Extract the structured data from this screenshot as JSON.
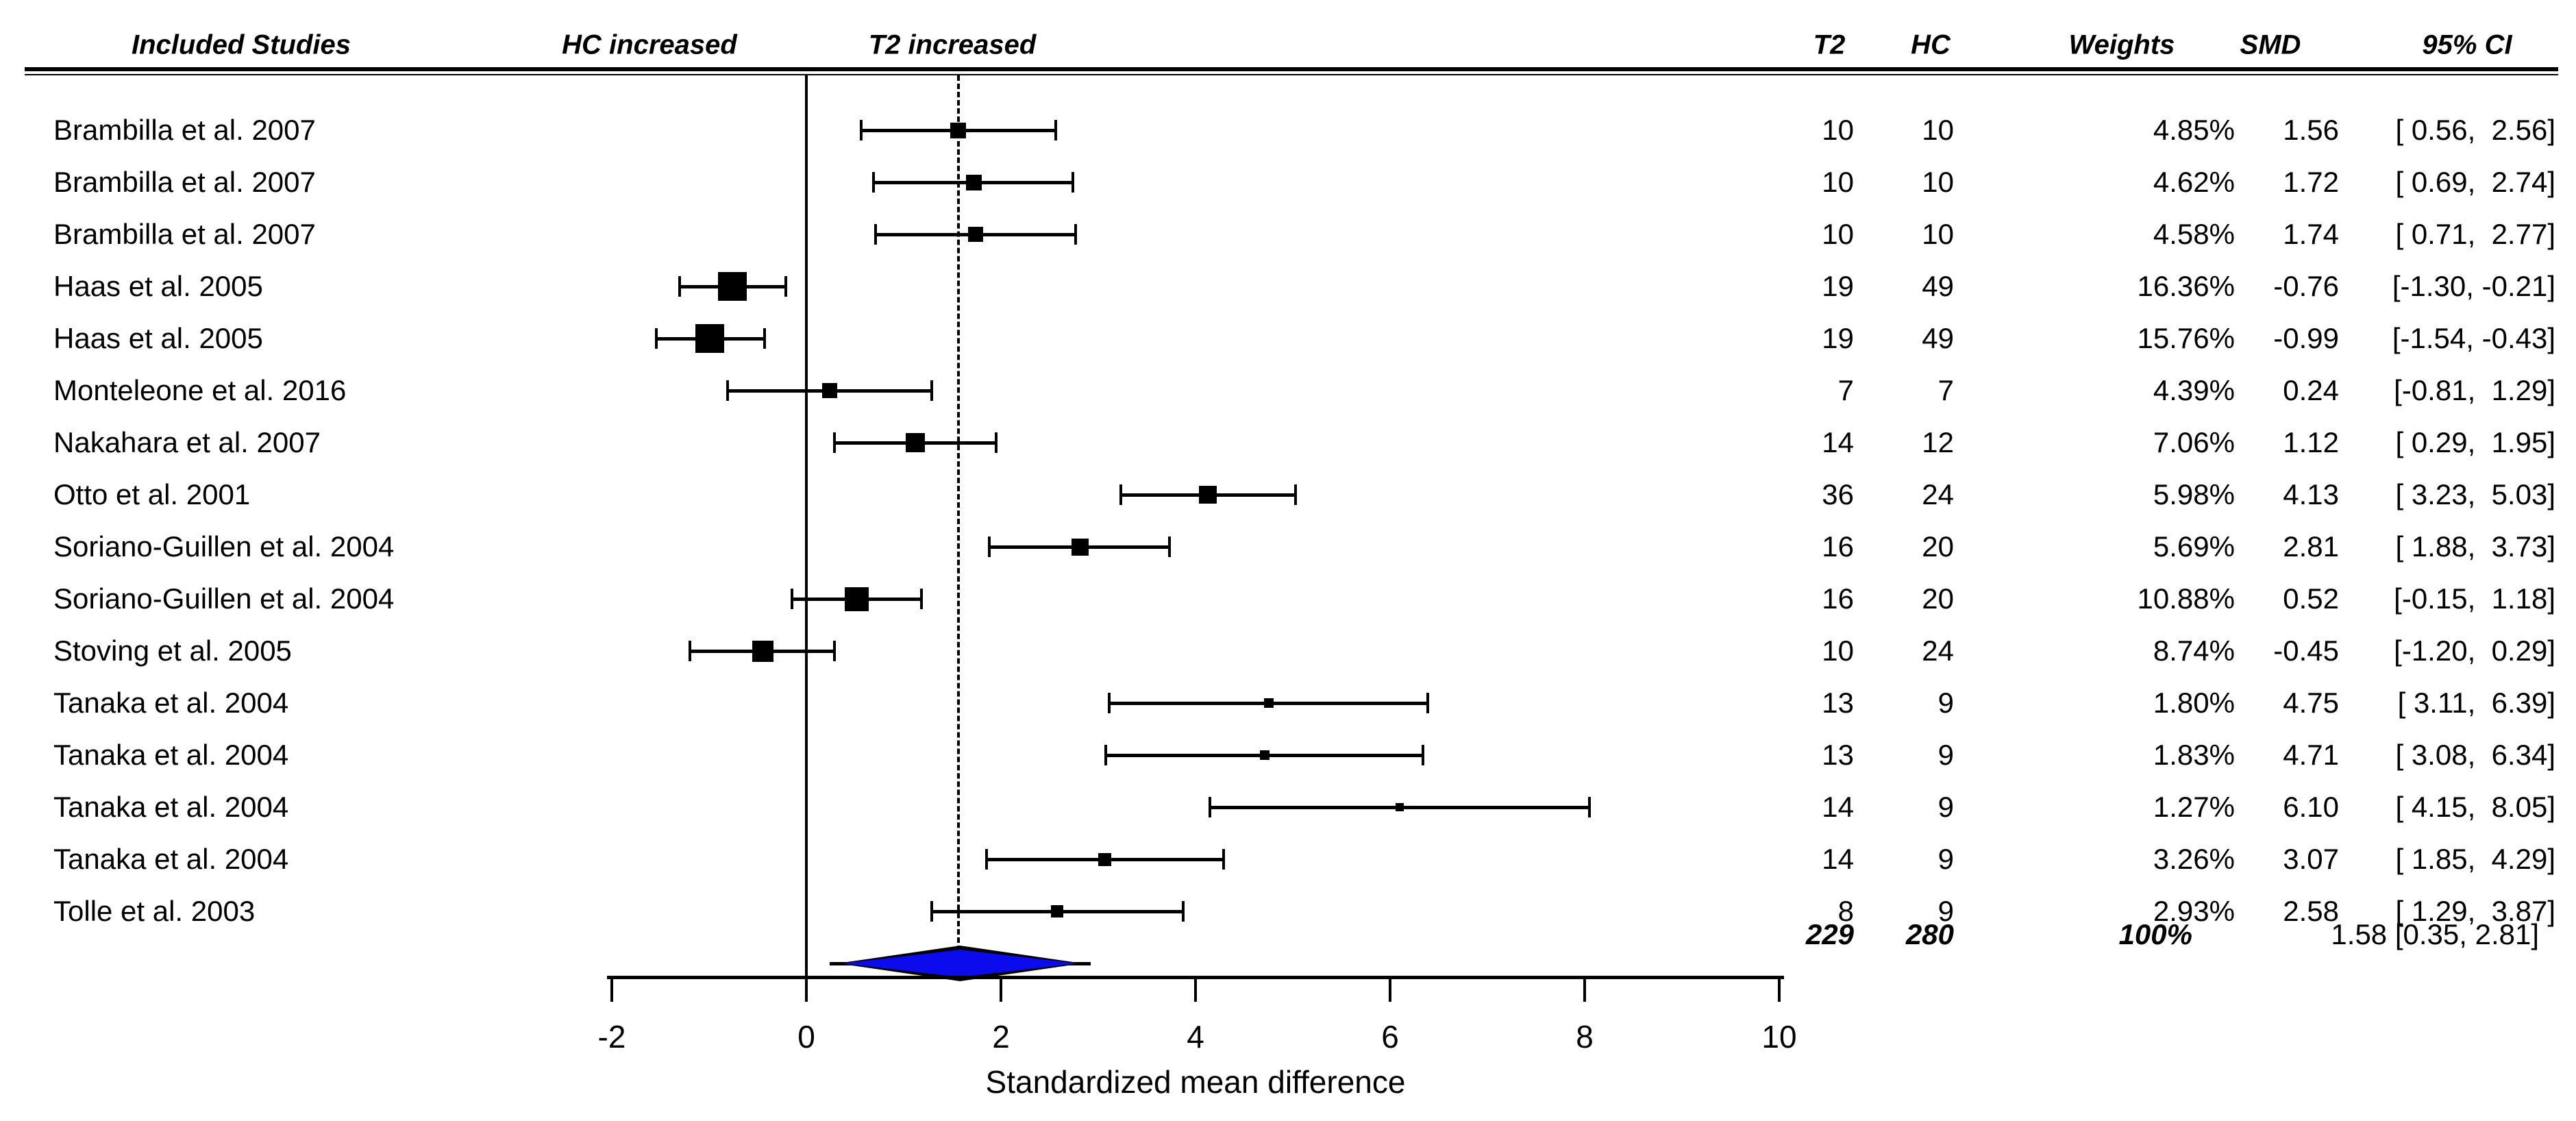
{
  "header": {
    "included_studies": "Included Studies",
    "hc_increased": "HC increased",
    "t2_increased": "T2 increased",
    "t2": "T2",
    "hc": "HC",
    "weights": "Weights",
    "smd": "SMD",
    "ci": "95% CI"
  },
  "colors": {
    "diamond_fill": "#0b0bee",
    "line": "#000000",
    "background": "#ffffff"
  },
  "chart_data": {
    "type": "scatter",
    "variant": "forest-plot",
    "xlabel": "Standardized mean difference",
    "x_axis": {
      "min": -2,
      "max": 10,
      "ticks": [
        -2,
        0,
        2,
        4,
        6,
        8,
        10
      ],
      "tick_labels": [
        "-2",
        "0",
        "2",
        "4",
        "6",
        "8",
        "10"
      ]
    },
    "reference_line_value": 0,
    "summary_dashed_line_value": 1.58,
    "grid": false,
    "studies": [
      {
        "name": "Brambilla et al. 2007",
        "t2": "10",
        "hc": "10",
        "weight": 4.85,
        "weight_label": "4.85%",
        "smd": 1.56,
        "smd_label": "1.56",
        "ci_low": 0.56,
        "ci_high": 2.56,
        "ci_label": "[ 0.56,  2.56]"
      },
      {
        "name": "Brambilla et al. 2007",
        "t2": "10",
        "hc": "10",
        "weight": 4.62,
        "weight_label": "4.62%",
        "smd": 1.72,
        "smd_label": "1.72",
        "ci_low": 0.69,
        "ci_high": 2.74,
        "ci_label": "[ 0.69,  2.74]"
      },
      {
        "name": "Brambilla et al. 2007",
        "t2": "10",
        "hc": "10",
        "weight": 4.58,
        "weight_label": "4.58%",
        "smd": 1.74,
        "smd_label": "1.74",
        "ci_low": 0.71,
        "ci_high": 2.77,
        "ci_label": "[ 0.71,  2.77]"
      },
      {
        "name": "Haas et al. 2005",
        "t2": "19",
        "hc": "49",
        "weight": 16.36,
        "weight_label": "16.36%",
        "smd": -0.76,
        "smd_label": "-0.76",
        "ci_low": -1.3,
        "ci_high": -0.21,
        "ci_label": "[-1.30, -0.21]"
      },
      {
        "name": "Haas et al. 2005",
        "t2": "19",
        "hc": "49",
        "weight": 15.76,
        "weight_label": "15.76%",
        "smd": -0.99,
        "smd_label": "-0.99",
        "ci_low": -1.54,
        "ci_high": -0.43,
        "ci_label": "[-1.54, -0.43]"
      },
      {
        "name": "Monteleone et al. 2016",
        "t2": "7",
        "hc": "7",
        "weight": 4.39,
        "weight_label": "4.39%",
        "smd": 0.24,
        "smd_label": "0.24",
        "ci_low": -0.81,
        "ci_high": 1.29,
        "ci_label": "[-0.81,  1.29]"
      },
      {
        "name": "Nakahara et al. 2007",
        "t2": "14",
        "hc": "12",
        "weight": 7.06,
        "weight_label": "7.06%",
        "smd": 1.12,
        "smd_label": "1.12",
        "ci_low": 0.29,
        "ci_high": 1.95,
        "ci_label": "[ 0.29,  1.95]"
      },
      {
        "name": "Otto et al. 2001",
        "t2": "36",
        "hc": "24",
        "weight": 5.98,
        "weight_label": "5.98%",
        "smd": 4.13,
        "smd_label": "4.13",
        "ci_low": 3.23,
        "ci_high": 5.03,
        "ci_label": "[ 3.23,  5.03]"
      },
      {
        "name": "Soriano-Guillen et al. 2004",
        "t2": "16",
        "hc": "20",
        "weight": 5.69,
        "weight_label": "5.69%",
        "smd": 2.81,
        "smd_label": "2.81",
        "ci_low": 1.88,
        "ci_high": 3.73,
        "ci_label": "[ 1.88,  3.73]"
      },
      {
        "name": "Soriano-Guillen et al. 2004",
        "t2": "16",
        "hc": "20",
        "weight": 10.88,
        "weight_label": "10.88%",
        "smd": 0.52,
        "smd_label": "0.52",
        "ci_low": -0.15,
        "ci_high": 1.18,
        "ci_label": "[-0.15,  1.18]"
      },
      {
        "name": "Stoving et al. 2005",
        "t2": "10",
        "hc": "24",
        "weight": 8.74,
        "weight_label": "8.74%",
        "smd": -0.45,
        "smd_label": "-0.45",
        "ci_low": -1.2,
        "ci_high": 0.29,
        "ci_label": "[-1.20,  0.29]"
      },
      {
        "name": "Tanaka et al. 2004",
        "t2": "13",
        "hc": "9",
        "weight": 1.8,
        "weight_label": "1.80%",
        "smd": 4.75,
        "smd_label": "4.75",
        "ci_low": 3.11,
        "ci_high": 6.39,
        "ci_label": "[ 3.11,  6.39]"
      },
      {
        "name": "Tanaka et al. 2004",
        "t2": "13",
        "hc": "9",
        "weight": 1.83,
        "weight_label": "1.83%",
        "smd": 4.71,
        "smd_label": "4.71",
        "ci_low": 3.08,
        "ci_high": 6.34,
        "ci_label": "[ 3.08,  6.34]"
      },
      {
        "name": "Tanaka et al. 2004",
        "t2": "14",
        "hc": "9",
        "weight": 1.27,
        "weight_label": "1.27%",
        "smd": 6.1,
        "smd_label": "6.10",
        "ci_low": 4.15,
        "ci_high": 8.05,
        "ci_label": "[ 4.15,  8.05]"
      },
      {
        "name": "Tanaka et al. 2004",
        "t2": "14",
        "hc": "9",
        "weight": 3.26,
        "weight_label": "3.26%",
        "smd": 3.07,
        "smd_label": "3.07",
        "ci_low": 1.85,
        "ci_high": 4.29,
        "ci_label": "[ 1.85,  4.29]"
      },
      {
        "name": "Tolle et al. 2003",
        "t2": "8",
        "hc": "9",
        "weight": 2.93,
        "weight_label": "2.93%",
        "smd": 2.58,
        "smd_label": "2.58",
        "ci_low": 1.29,
        "ci_high": 3.87,
        "ci_label": "[ 1.29,  3.87]"
      }
    ],
    "summary": {
      "t2": "229",
      "hc": "280",
      "weight_label": "100%",
      "smd": 1.58,
      "ci_low": 0.35,
      "ci_high": 2.81,
      "label": "1.58 [0.35, 2.81]"
    }
  }
}
